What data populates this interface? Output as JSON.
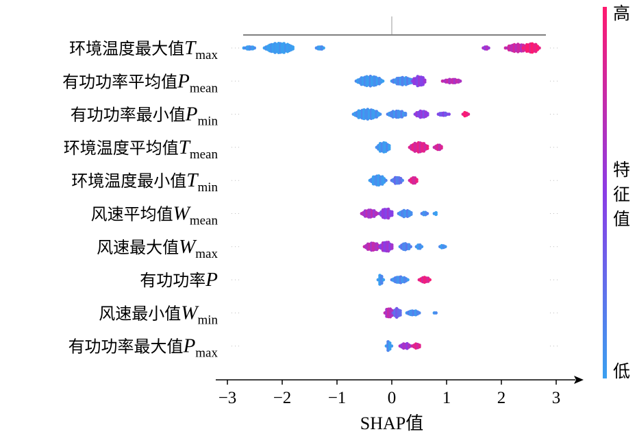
{
  "chart_data": {
    "type": "scatter",
    "subtype": "shap-beeswarm",
    "xlabel": "SHAP值",
    "xlim": [
      -3,
      3
    ],
    "xticks": [
      -3,
      -2,
      -1,
      0,
      1,
      2,
      3
    ],
    "xtick_labels": [
      "−3",
      "−2",
      "−1",
      "0",
      "1",
      "2",
      "3"
    ],
    "colorbar": {
      "high_label": "高",
      "mid_label": "特征值",
      "low_label": "低",
      "low_color": "#3aa0f0",
      "mid_color": "#8a3ce6",
      "high_color": "#ff1a6e"
    },
    "features": [
      {
        "label": "环境温度最大值",
        "symbol": "T",
        "sub": "max",
        "clusters": [
          {
            "center": -2.05,
            "width": 0.55,
            "height": 0.75,
            "feature_value": 0.0
          },
          {
            "center": -2.6,
            "width": 0.2,
            "height": 0.3,
            "feature_value": 0.05
          },
          {
            "center": -1.3,
            "width": 0.15,
            "height": 0.3,
            "feature_value": 0.05
          },
          {
            "center": 2.3,
            "width": 0.45,
            "height": 0.6,
            "feature_value": 0.75
          },
          {
            "center": 2.55,
            "width": 0.3,
            "height": 0.7,
            "feature_value": 0.95
          },
          {
            "center": 1.72,
            "width": 0.1,
            "height": 0.3,
            "feature_value": 0.6
          }
        ]
      },
      {
        "label": "有功功率平均值",
        "symbol": "P",
        "sub": "mean",
        "clusters": [
          {
            "center": -0.4,
            "width": 0.5,
            "height": 0.75,
            "feature_value": 0.05
          },
          {
            "center": 0.2,
            "width": 0.4,
            "height": 0.6,
            "feature_value": 0.1
          },
          {
            "center": 0.5,
            "width": 0.25,
            "height": 0.75,
            "feature_value": 0.5
          },
          {
            "center": 1.1,
            "width": 0.35,
            "height": 0.35,
            "feature_value": 0.7
          }
        ]
      },
      {
        "label": "有功功率最小值",
        "symbol": "P",
        "sub": "min",
        "clusters": [
          {
            "center": -0.45,
            "width": 0.5,
            "height": 0.75,
            "feature_value": 0.05
          },
          {
            "center": 0.1,
            "width": 0.35,
            "height": 0.55,
            "feature_value": 0.1
          },
          {
            "center": 0.55,
            "width": 0.25,
            "height": 0.55,
            "feature_value": 0.5
          },
          {
            "center": 0.95,
            "width": 0.2,
            "height": 0.3,
            "feature_value": 0.4
          },
          {
            "center": 1.35,
            "width": 0.1,
            "height": 0.35,
            "feature_value": 0.95
          }
        ]
      },
      {
        "label": "环境温度平均值",
        "symbol": "T",
        "sub": "mean",
        "clusters": [
          {
            "center": -0.15,
            "width": 0.25,
            "height": 0.75,
            "feature_value": 0.05
          },
          {
            "center": 0.5,
            "width": 0.35,
            "height": 0.75,
            "feature_value": 0.85
          },
          {
            "center": 0.85,
            "width": 0.15,
            "height": 0.45,
            "feature_value": 0.8
          }
        ]
      },
      {
        "label": "环境温度最小值",
        "symbol": "T",
        "sub": "min",
        "clusters": [
          {
            "center": -0.25,
            "width": 0.3,
            "height": 0.75,
            "feature_value": 0.05
          },
          {
            "center": 0.1,
            "width": 0.2,
            "height": 0.55,
            "feature_value": 0.2
          },
          {
            "center": 0.4,
            "width": 0.15,
            "height": 0.5,
            "feature_value": 0.85
          }
        ]
      },
      {
        "label": "风速平均值",
        "symbol": "W",
        "sub": "mean",
        "clusters": [
          {
            "center": -0.4,
            "width": 0.3,
            "height": 0.6,
            "feature_value": 0.65
          },
          {
            "center": -0.1,
            "width": 0.25,
            "height": 0.75,
            "feature_value": 0.5
          },
          {
            "center": 0.25,
            "width": 0.25,
            "height": 0.55,
            "feature_value": 0.1
          },
          {
            "center": 0.6,
            "width": 0.1,
            "height": 0.35,
            "feature_value": 0.1
          },
          {
            "center": 0.8,
            "width": 0.05,
            "height": 0.25,
            "feature_value": 0.05
          }
        ]
      },
      {
        "label": "风速最大值",
        "symbol": "W",
        "sub": "max",
        "clusters": [
          {
            "center": -0.35,
            "width": 0.3,
            "height": 0.6,
            "feature_value": 0.7
          },
          {
            "center": -0.1,
            "width": 0.25,
            "height": 0.75,
            "feature_value": 0.55
          },
          {
            "center": 0.25,
            "width": 0.2,
            "height": 0.55,
            "feature_value": 0.15
          },
          {
            "center": 0.5,
            "width": 0.1,
            "height": 0.4,
            "feature_value": 0.05
          },
          {
            "center": 0.93,
            "width": 0.1,
            "height": 0.3,
            "feature_value": 0.05
          }
        ]
      },
      {
        "label": "有功功率",
        "symbol": "P",
        "sub": "",
        "clusters": [
          {
            "center": -0.2,
            "width": 0.1,
            "height": 0.75,
            "feature_value": 0.05
          },
          {
            "center": 0.15,
            "width": 0.3,
            "height": 0.5,
            "feature_value": 0.1
          },
          {
            "center": 0.6,
            "width": 0.2,
            "height": 0.45,
            "feature_value": 0.9
          }
        ]
      },
      {
        "label": "风速最小值",
        "symbol": "W",
        "sub": "min",
        "clusters": [
          {
            "center": -0.05,
            "width": 0.15,
            "height": 0.75,
            "feature_value": 0.7
          },
          {
            "center": 0.1,
            "width": 0.15,
            "height": 0.7,
            "feature_value": 0.3
          },
          {
            "center": 0.4,
            "width": 0.25,
            "height": 0.4,
            "feature_value": 0.1
          },
          {
            "center": 0.8,
            "width": 0.05,
            "height": 0.25,
            "feature_value": 0.05
          }
        ]
      },
      {
        "label": "有功功率最大值",
        "symbol": "P",
        "sub": "max",
        "clusters": [
          {
            "center": -0.05,
            "width": 0.1,
            "height": 0.75,
            "feature_value": 0.05
          },
          {
            "center": 0.25,
            "width": 0.2,
            "height": 0.45,
            "feature_value": 0.6
          },
          {
            "center": 0.45,
            "width": 0.15,
            "height": 0.4,
            "feature_value": 0.85
          }
        ]
      }
    ]
  }
}
